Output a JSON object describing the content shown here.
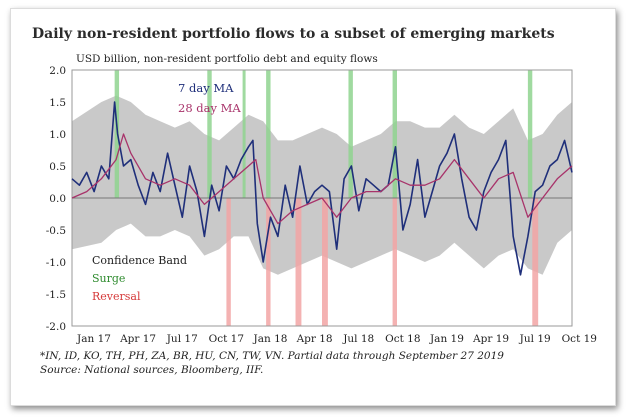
{
  "title": "Daily non-resident portfolio flows to a subset of emerging markets",
  "colors": {
    "ma7": "#1f2f7a",
    "ma28": "#a8336a",
    "band": "#c3c3c3",
    "surge": "#8fd48f",
    "reversal": "#f2a5a5",
    "axis": "#444444"
  },
  "footnotes": {
    "line1": "*IN, ID, KO, TH, PH, ZA, BR, HU, CN, TW, VN. Partial data through September 27 2019",
    "line2": "Source: National sources, Bloomberg, IIF."
  },
  "chart_data": {
    "type": "line",
    "title": "Daily non-resident portfolio flows to a subset of emerging markets",
    "ylabel": "USD billion, non-resident portfolio debt and equity flows",
    "xlabel": "",
    "ylim": [
      -2.0,
      2.0
    ],
    "yticks": [
      "2.0",
      "1.5",
      "1.0",
      "0.5",
      "0.0",
      "-0.5",
      "-1.0",
      "-1.5",
      "-2.0"
    ],
    "xlim": [
      0,
      33
    ],
    "xticks": [
      {
        "x": 0,
        "label": "Jan 17"
      },
      {
        "x": 3,
        "label": "Apr 17"
      },
      {
        "x": 6,
        "label": "Jul 17"
      },
      {
        "x": 9,
        "label": "Oct 17"
      },
      {
        "x": 12,
        "label": "Jan 18"
      },
      {
        "x": 15,
        "label": "Apr 18"
      },
      {
        "x": 18,
        "label": "Jul 18"
      },
      {
        "x": 21,
        "label": "Oct 18"
      },
      {
        "x": 24,
        "label": "Jan 19"
      },
      {
        "x": 27,
        "label": "Apr 19"
      },
      {
        "x": 30,
        "label": "Jul 19"
      },
      {
        "x": 33,
        "label": "Oct 19"
      }
    ],
    "series": [
      {
        "name": "7 day MA",
        "x": [
          0,
          0.5,
          1,
          1.5,
          2,
          2.5,
          2.9,
          3.1,
          3.5,
          4,
          4.5,
          5,
          5.5,
          6,
          6.5,
          7,
          7.5,
          8,
          8.5,
          9,
          9.5,
          10,
          10.5,
          11,
          11.5,
          12,
          12.3,
          12.6,
          13,
          13.5,
          14,
          14.5,
          15,
          15.5,
          16,
          16.5,
          17,
          17.5,
          18,
          18.5,
          19,
          19.5,
          20,
          20.5,
          21,
          21.5,
          22,
          22.5,
          23,
          23.5,
          24,
          24.5,
          25,
          25.5,
          26,
          26.5,
          27,
          27.5,
          28,
          28.5,
          29,
          29.5,
          30,
          30.5,
          31,
          31.5,
          32,
          32.5,
          33,
          33.5,
          34
        ],
        "values": [
          0.3,
          0.2,
          0.4,
          0.1,
          0.5,
          0.3,
          1.5,
          1.0,
          0.5,
          0.6,
          0.2,
          -0.1,
          0.4,
          0.1,
          0.7,
          0.2,
          -0.3,
          0.5,
          0.1,
          -0.6,
          0.2,
          -0.2,
          0.5,
          0.3,
          0.6,
          0.8,
          0.9,
          -0.4,
          -1.0,
          -0.3,
          -0.6,
          0.2,
          -0.3,
          0.5,
          -0.1,
          0.1,
          0.2,
          0.1,
          -0.8,
          0.3,
          0.5,
          -0.2,
          0.3,
          0.2,
          0.1,
          0.2,
          0.8,
          -0.5,
          -0.1,
          0.6,
          -0.3,
          0.1,
          0.5,
          0.7,
          1.0,
          0.3,
          -0.3,
          -0.5,
          0.1,
          0.4,
          0.6,
          0.9,
          -0.6,
          -1.2,
          -0.6,
          0.1,
          0.2,
          0.5,
          0.6,
          0.9,
          0.4
        ]
      },
      {
        "name": "28 day MA",
        "x": [
          0,
          1,
          2,
          3,
          3.5,
          4,
          5,
          6,
          7,
          8,
          9,
          10,
          11,
          12,
          12.5,
          13,
          14,
          15,
          16,
          17,
          18,
          19,
          20,
          21,
          22,
          23,
          24,
          25,
          26,
          27,
          28,
          29,
          30,
          31,
          32,
          33,
          34
        ],
        "values": [
          0.0,
          0.1,
          0.3,
          0.6,
          1.0,
          0.7,
          0.3,
          0.2,
          0.3,
          0.2,
          -0.1,
          0.1,
          0.3,
          0.5,
          0.6,
          0.0,
          -0.4,
          -0.2,
          -0.1,
          0.0,
          -0.3,
          0.0,
          0.1,
          0.1,
          0.3,
          0.2,
          0.2,
          0.3,
          0.6,
          0.3,
          0.0,
          0.3,
          0.4,
          -0.3,
          0.0,
          0.3,
          0.5
        ]
      }
    ],
    "band": {
      "name": "Confidence Band",
      "x": [
        0,
        2,
        3,
        4,
        5,
        6,
        7,
        8,
        9,
        10,
        11,
        12,
        13,
        14,
        15,
        16,
        17,
        18,
        19,
        20,
        21,
        22,
        23,
        24,
        25,
        26,
        27,
        28,
        29,
        30,
        31,
        32,
        33,
        34
      ],
      "upper": [
        1.2,
        1.5,
        1.6,
        1.5,
        1.3,
        1.2,
        1.1,
        1.2,
        1.0,
        0.9,
        1.1,
        1.3,
        1.2,
        0.9,
        0.9,
        1.0,
        1.1,
        1.0,
        0.8,
        0.9,
        1.0,
        1.2,
        1.2,
        1.1,
        1.1,
        1.3,
        1.1,
        1.0,
        1.2,
        1.4,
        0.9,
        1.0,
        1.3,
        1.5
      ],
      "lower": [
        -0.8,
        -0.7,
        -0.5,
        -0.4,
        -0.6,
        -0.6,
        -0.5,
        -0.6,
        -0.9,
        -0.8,
        -0.6,
        -0.6,
        -1.1,
        -1.2,
        -1.1,
        -1.0,
        -0.9,
        -1.0,
        -1.1,
        -1.0,
        -0.9,
        -0.8,
        -0.9,
        -1.0,
        -0.9,
        -0.7,
        -0.9,
        -1.1,
        -0.9,
        -0.8,
        -1.1,
        -1.2,
        -0.7,
        -0.5
      ]
    },
    "surge_events": [
      [
        2.9,
        3.2
      ],
      [
        9.2,
        9.5
      ],
      [
        11.6,
        11.8
      ],
      [
        13.2,
        13.5
      ],
      [
        18.8,
        19.1
      ],
      [
        21.8,
        22.1
      ],
      [
        31.0,
        31.3
      ]
    ],
    "reversal_events": [
      [
        10.5,
        10.8
      ],
      [
        13.2,
        13.5
      ],
      [
        15.2,
        15.6
      ],
      [
        17.0,
        17.4
      ],
      [
        21.8,
        22.1
      ],
      [
        31.3,
        31.7
      ]
    ],
    "legend": {
      "series_labels": [
        "7 day MA",
        "28 day MA"
      ],
      "band_labels": [
        "Confidence Band",
        "Surge",
        "Reversal"
      ]
    },
    "grid": false
  }
}
